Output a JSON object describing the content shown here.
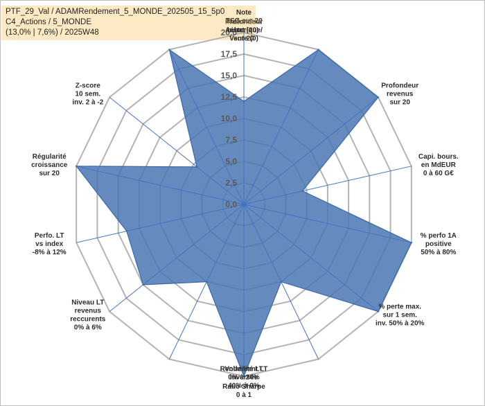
{
  "title": {
    "line1": "PTF_29_Val / ADAMRendement_5_MONDE_202505_15_5p0",
    "line2": "C4_Actions / 5_MONDE",
    "line3": "(13,0% | 7,6%) / 2025W48"
  },
  "colors": {
    "fill": "#4a76b1",
    "stroke": "#3a68ad",
    "grid": "#b3b3b3",
    "spoke": "#4472c4",
    "title_bg": "#fde9c3"
  },
  "chart_data": {
    "type": "radar",
    "rmin": 0,
    "rmax": 20,
    "ticks": [
      "0,0",
      "2,5",
      "5,0",
      "7,5",
      "10,0",
      "12,5",
      "15,0",
      "17,5",
      "20,0"
    ],
    "axes": [
      [
        "Note",
        "ESG sur 20"
      ],
      [
        "Profondeur",
        "historique",
        "sur 20"
      ],
      [
        "Profondeur",
        "revenus",
        "sur 20"
      ],
      [
        "Capi. bours.",
        "en MdEUR",
        "0 à 60 G€"
      ],
      [
        "% perfo 1A",
        "positive",
        "50% à 80%"
      ],
      [
        "% perte max.",
        "sur 1 sem.",
        "inv. 50% à 20%"
      ],
      [
        "Volatilité LT",
        "inversée",
        "40% à 0%"
      ],
      [
        "Ratio Sharpe",
        "0 à 1"
      ],
      [
        "Rendement LT",
        "0% à 20%"
      ],
      [
        "Niveau LT",
        "revenus",
        "reccurents",
        "0% à 6%"
      ],
      [
        "Perfo. LT",
        "vs index",
        "-8% à 12%"
      ],
      [
        "Régularité",
        "croissance",
        "sur 20"
      ],
      [
        "Z-score",
        "10 sem.",
        "inv. 2 à -2"
      ],
      [
        "Momentum",
        "Achat (20) /",
        "Vente (0)"
      ]
    ],
    "values": [
      12,
      20,
      20,
      7,
      20,
      20,
      10,
      20,
      10,
      15,
      14,
      20,
      7,
      20
    ]
  }
}
